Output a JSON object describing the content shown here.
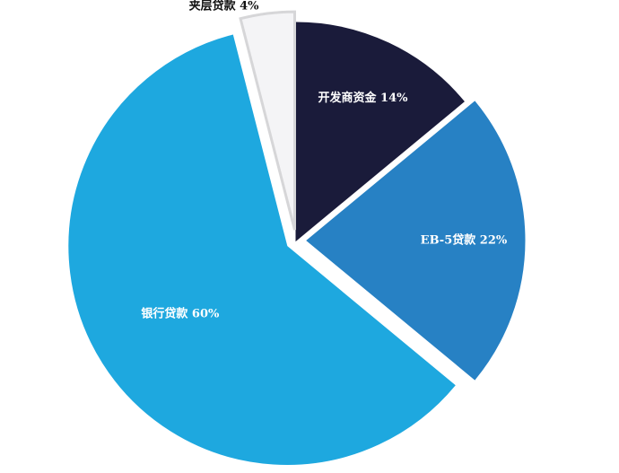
{
  "chart_data": {
    "type": "pie",
    "title": "",
    "legend": "none",
    "slices": [
      {
        "label": "开发商资金",
        "value": 14,
        "value_text": "14%",
        "color": "#1a1b3a",
        "text_color": "#ffffff",
        "exploded": false
      },
      {
        "label": "EB-5贷款",
        "value": 22,
        "value_text": "22%",
        "color": "#2781c4",
        "text_color": "#ffffff",
        "exploded": true
      },
      {
        "label": "银行贷款",
        "value": 60,
        "value_text": "60%",
        "color": "#1ea8df",
        "text_color": "#ffffff",
        "exploded": true
      },
      {
        "label": "夹层贷款",
        "value": 4,
        "value_text": "4%",
        "color": "#f4f4f6",
        "stroke": "#d6d6d8",
        "text_color": "#111111",
        "exploded": true,
        "label_outside": true
      }
    ]
  }
}
